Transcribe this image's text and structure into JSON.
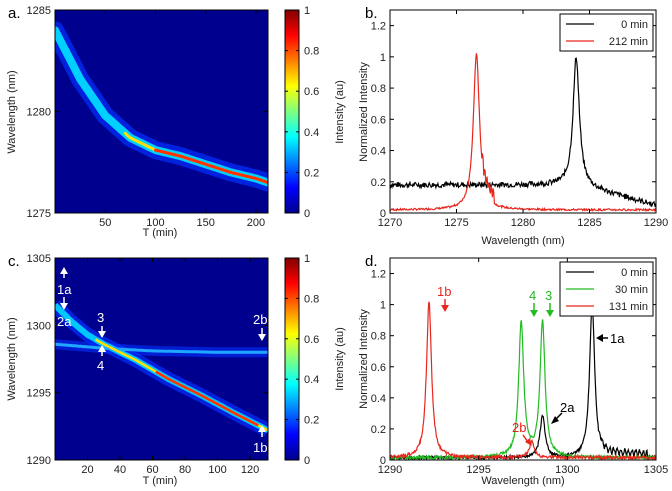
{
  "panels": [
    {
      "label": "a.",
      "type": "heatmap",
      "xlabel": "T (min)",
      "ylabel": "Wavelength (nm)",
      "xlim": [
        0,
        212
      ],
      "ylim": [
        1275,
        1285
      ],
      "xticks": [
        "50",
        "100",
        "150",
        "200"
      ],
      "yticks": [
        "1275",
        "1280",
        "1285"
      ],
      "colorbar": {
        "label": "Intensity (au)",
        "ticks": [
          "0",
          "0.2",
          "0.4",
          "0.6",
          "0.8",
          "1"
        ]
      }
    },
    {
      "label": "b.",
      "type": "line",
      "xlabel": "Wavelength (nm)",
      "ylabel": "Normalized Intensity",
      "xlim": [
        1270,
        1290
      ],
      "ylim": [
        0,
        1.3
      ],
      "xticks": [
        "1270",
        "1275",
        "1280",
        "1285",
        "1290"
      ],
      "yticks": [
        "0",
        "0.2",
        "0.4",
        "0.6",
        "0.8",
        "1",
        "1.2"
      ],
      "legend": [
        "0 min",
        "212 min"
      ]
    },
    {
      "label": "c.",
      "type": "heatmap",
      "xlabel": "T (min)",
      "ylabel": "Wavelength (nm)",
      "xlim": [
        0,
        131
      ],
      "ylim": [
        1290,
        1305
      ],
      "xticks": [
        "20",
        "40",
        "60",
        "80",
        "100",
        "120"
      ],
      "yticks": [
        "1290",
        "1295",
        "1300",
        "1305"
      ],
      "colorbar": {
        "label": "Intensity (au)",
        "ticks": [
          "0",
          "0.2",
          "0.4",
          "0.6",
          "0.8",
          "1"
        ]
      },
      "annotations": [
        "1a",
        "2a",
        "3",
        "4",
        "2b",
        "1b"
      ]
    },
    {
      "label": "d.",
      "type": "line",
      "xlabel": "Wavelength (nm)",
      "ylabel": "Normalized Intensity",
      "xlim": [
        1290,
        1305
      ],
      "ylim": [
        0,
        1.3
      ],
      "xticks": [
        "1290",
        "1295",
        "1300",
        "1305"
      ],
      "yticks": [
        "0",
        "0.2",
        "0.4",
        "0.6",
        "0.8",
        "1",
        "1.2"
      ],
      "legend": [
        "0 min",
        "30 min",
        "131 min"
      ],
      "annotations": [
        "1b",
        "4",
        "3",
        "1a",
        "2a",
        "2b"
      ]
    }
  ],
  "chart_data": [
    {
      "type": "heatmap",
      "title": "a.",
      "xlabel": "T (min)",
      "ylabel": "Wavelength (nm)",
      "xlim": [
        0,
        212
      ],
      "ylim": [
        1275,
        1285
      ],
      "ridge": {
        "t": [
          0,
          25,
          50,
          75,
          100,
          125,
          150,
          175,
          200,
          212
        ],
        "wavelength": [
          1284.0,
          1281.6,
          1279.8,
          1278.7,
          1278.1,
          1277.8,
          1277.4,
          1277.0,
          1276.7,
          1276.5
        ]
      }
    },
    {
      "type": "line",
      "title": "b.",
      "xlabel": "Wavelength (nm)",
      "ylabel": "Normalized Intensity",
      "xlim": [
        1270,
        1290
      ],
      "ylim": [
        0,
        1.3
      ],
      "series": [
        {
          "name": "0 min",
          "color": "#000000",
          "peak": 1284.0,
          "peak_value": 1.0,
          "baseline": 0.18
        },
        {
          "name": "212 min",
          "color": "#e8261d",
          "peak": 1276.5,
          "peak_value": 1.0,
          "baseline": 0.02
        }
      ]
    },
    {
      "type": "heatmap",
      "title": "c.",
      "xlabel": "T (min)",
      "ylabel": "Wavelength (nm)",
      "xlim": [
        0,
        131
      ],
      "ylim": [
        1290,
        1305
      ],
      "branches": [
        {
          "name": "1a-1b",
          "t": [
            0,
            10,
            20,
            30,
            50,
            70,
            90,
            110,
            131
          ],
          "wavelength": [
            1301.5,
            1300.3,
            1299.3,
            1298.6,
            1297.4,
            1296.0,
            1294.8,
            1293.5,
            1292.2
          ]
        },
        {
          "name": "2a-2b",
          "t": [
            0,
            20,
            30,
            60,
            100,
            131
          ],
          "wavelength": [
            1298.6,
            1298.4,
            1298.3,
            1298.1,
            1298.0,
            1298.0
          ]
        }
      ]
    },
    {
      "type": "line",
      "title": "d.",
      "xlabel": "Wavelength (nm)",
      "ylabel": "Normalized Intensity",
      "xlim": [
        1290,
        1305
      ],
      "ylim": [
        0,
        1.3
      ],
      "series": [
        {
          "name": "0 min",
          "color": "#000000",
          "peaks": [
            1301.4,
            1298.6
          ],
          "peak_values": [
            1.0,
            0.27
          ]
        },
        {
          "name": "30 min",
          "color": "#22bb22",
          "peaks": [
            1298.6,
            1297.4
          ],
          "peak_values": [
            0.87,
            0.87
          ]
        },
        {
          "name": "131 min",
          "color": "#e8261d",
          "peaks": [
            1292.2,
            1298.0
          ],
          "peak_values": [
            1.0,
            0.1
          ]
        }
      ]
    }
  ]
}
